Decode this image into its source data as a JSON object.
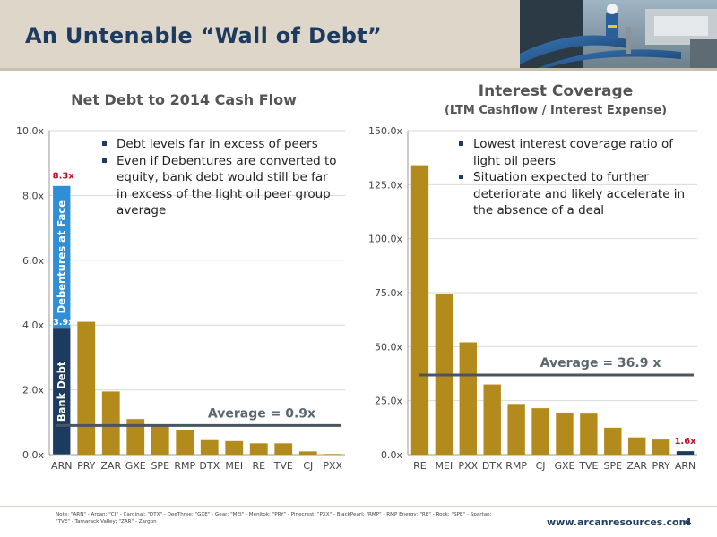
{
  "page": {
    "title": "An Untenable “Wall of Debt”",
    "note": "Note: \"ARN\" - Arcan; \"CJ\" - Cardinal; \"DTX\" - DeeThree; \"GXE\" - Gear; \"MEI\" - Menitok; \"PRY\" - Pinecrest; \"PXX\" - BlackPearl; \"RMP\" - RMP Energy; \"RE\" - Rock; \"SPE\" - Spartan; \"TVE\" - Tamarack Valley; \"ZAR\" - Zargon",
    "footer_url": "www.arcanresources.com",
    "page_number": "4",
    "colors": {
      "title": "#1d3a5f",
      "bar": "#b38b1c",
      "bank_debt": "#1d3a5f",
      "debentures": "#2e8fd6",
      "average_line": "#4a5560",
      "highlight_label": "#c0102a"
    }
  },
  "left": {
    "title": "Net Debt to 2014 Cash Flow",
    "bullets": [
      "Debt levels far in excess of peers",
      "Even if Debentures are converted to equity, bank debt would still be far in excess of the light oil peer group average"
    ]
  },
  "right": {
    "title": "Interest Coverage",
    "subtitle": "(LTM Cashflow / Interest Expense)",
    "bullets": [
      "Lowest interest coverage ratio of light oil peers",
      "Situation expected to further deteriorate and likely accelerate in the absence of a deal"
    ]
  },
  "chart_data": [
    {
      "type": "bar",
      "title": "Net Debt to 2014 Cash Flow",
      "categories": [
        "ARN",
        "PRY",
        "ZAR",
        "GXE",
        "SPE",
        "RMP",
        "DTX",
        "MEI",
        "RE",
        "TVE",
        "CJ",
        "PXX"
      ],
      "values": [
        8.3,
        4.1,
        1.95,
        1.1,
        0.9,
        0.75,
        0.45,
        0.42,
        0.35,
        0.35,
        0.1,
        0.02
      ],
      "stacked_first_bar": [
        {
          "name": "Bank Debt",
          "value": 3.9
        },
        {
          "name": "Debentures at Face",
          "value": 4.4
        }
      ],
      "data_labels": {
        "ARN_total": "8.3x",
        "ARN_bank": "3.9x"
      },
      "average": {
        "label": "Average = 0.9x",
        "value": 0.9
      },
      "ylim": [
        0,
        10
      ],
      "yticks": [
        0,
        2,
        4,
        6,
        8,
        10
      ],
      "ytick_labels": [
        "0.0x",
        "2.0x",
        "4.0x",
        "6.0x",
        "8.0x",
        "10.0x"
      ],
      "xlabel": "",
      "ylabel": "",
      "grid": true
    },
    {
      "type": "bar",
      "title": "Interest Coverage",
      "subtitle": "(LTM Cashflow / Interest Expense)",
      "categories": [
        "RE",
        "MEI",
        "PXX",
        "DTX",
        "RMP",
        "CJ",
        "GXE",
        "TVE",
        "SPE",
        "ZAR",
        "PRY",
        "ARN"
      ],
      "values": [
        134,
        74.5,
        52,
        32.5,
        23.5,
        21.5,
        19.5,
        19,
        12.5,
        8,
        7,
        1.6
      ],
      "data_labels": {
        "ARN": "1.6x"
      },
      "average": {
        "label": "Average = 36.9 x",
        "value": 36.9
      },
      "ylim": [
        0,
        150
      ],
      "yticks": [
        0,
        25,
        50,
        75,
        100,
        125,
        150
      ],
      "ytick_labels": [
        "0.0x",
        "25.0x",
        "50.0x",
        "75.0x",
        "100.0x",
        "125.0x",
        "150.0x"
      ],
      "xlabel": "",
      "ylabel": "",
      "grid": true
    }
  ]
}
